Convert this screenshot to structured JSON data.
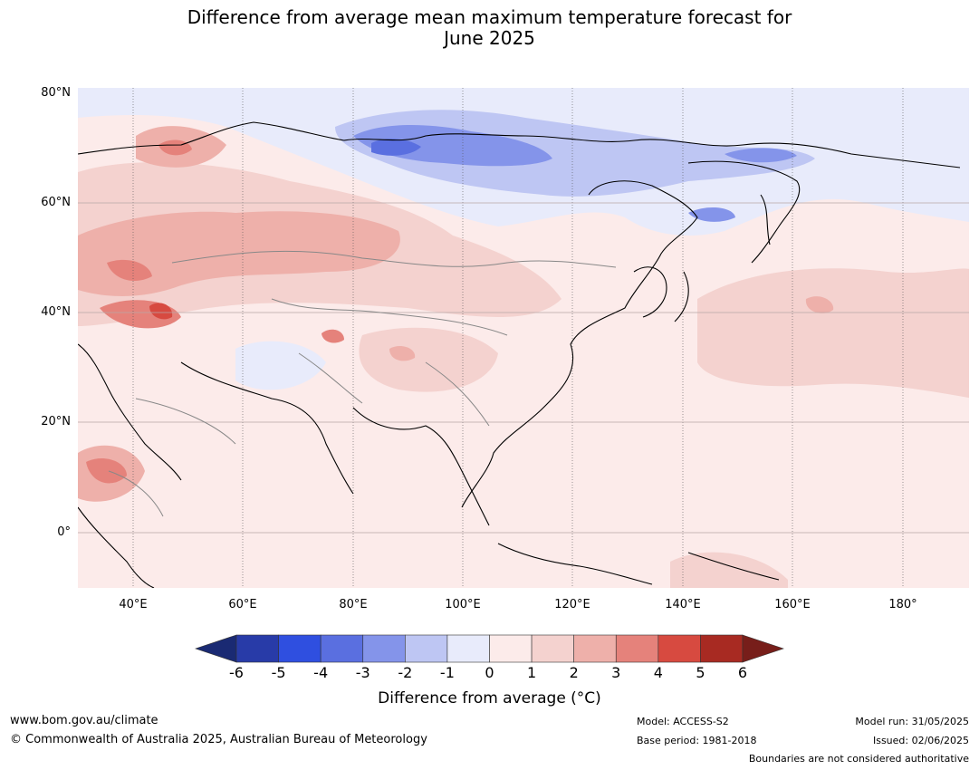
{
  "title_line1": "Difference from average mean maximum temperature forecast for",
  "title_line2": "June 2025",
  "map": {
    "lat_labels": [
      "80°N",
      "60°N",
      "40°N",
      "20°N",
      "0°"
    ],
    "lon_labels": [
      "40°E",
      "60°E",
      "80°E",
      "100°E",
      "120°E",
      "140°E",
      "160°E",
      "180°"
    ],
    "base_color": "#fcebea",
    "anomaly_regions": [
      {
        "area": "Central Siberia",
        "anomaly": "-2 to -4",
        "color": "#5a6fe0"
      },
      {
        "area": "Northern Siberia",
        "anomaly": "0 to -2",
        "color": "#e8ebfb"
      },
      {
        "area": "Eastern Europe / Western Russia",
        "anomaly": "1 to 3",
        "color": "#eeb0aa"
      },
      {
        "area": "Caucasus",
        "anomaly": "3 to 5",
        "color": "#dd5f55"
      },
      {
        "area": "North Pacific",
        "anomaly": "1 to 3",
        "color": "#f4d2cf"
      }
    ]
  },
  "colorbar": {
    "ticks": [
      "-6",
      "-5",
      "-4",
      "-3",
      "-2",
      "-1",
      "0",
      "1",
      "2",
      "3",
      "4",
      "5",
      "6"
    ],
    "under_color": "#1a2a73",
    "over_color": "#771e1a",
    "colors": [
      "#283ba8",
      "#2f4fe0",
      "#5a6fe0",
      "#8494ea",
      "#bec6f3",
      "#e8ebfb",
      "#fcebea",
      "#f4d2cf",
      "#eeb0aa",
      "#e5827b",
      "#d74a40",
      "#a82a22"
    ],
    "label": "Difference from average (°C)"
  },
  "footer": {
    "website": "www.bom.gov.au/climate",
    "copyright": "© Commonwealth of Australia 2025, Australian Bureau of Meteorology",
    "model": "Model: ACCESS-S2",
    "base_period": "Base period: 1981-2018",
    "model_run": "Model run: 31/05/2025",
    "issued": "Issued: 02/06/2025",
    "disclaimer": "Boundaries are not considered authoritative"
  }
}
